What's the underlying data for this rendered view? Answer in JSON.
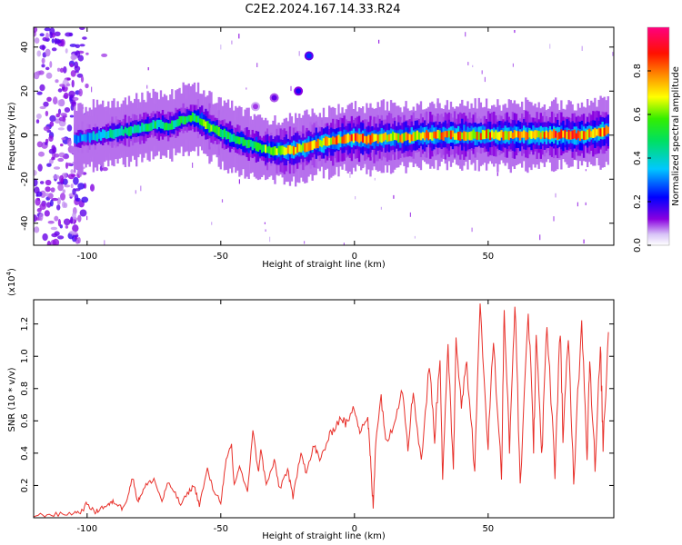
{
  "title": "C2E2.2024.167.14.33.R24",
  "colors": {
    "snr_line": "#e8302a",
    "background": "#ffffff"
  },
  "chart_data": [
    {
      "type": "heatmap",
      "title": "C2E2.2024.167.14.33.R24",
      "xlabel": "Height of straight line (km)",
      "ylabel": "Frequency (Hz)",
      "xlim": [
        -120,
        97
      ],
      "ylim": [
        -50,
        49
      ],
      "x_ticks": [
        -100,
        -50,
        0,
        50
      ],
      "y_ticks": [
        40,
        20,
        0,
        -20,
        -40
      ],
      "colorbar": {
        "label": "Normalized spectral amplitude",
        "range": [
          0.0,
          1.0
        ],
        "ticks": [
          "0.0",
          "0.2",
          "0.4",
          "0.6",
          "0.8"
        ],
        "colormap": [
          "#ffffff",
          "#c49cf5",
          "#7a00d9",
          "#0000ff",
          "#00e0ff",
          "#00ee00",
          "#ffff00",
          "#ff8c00",
          "#ff0000",
          "#ff0080"
        ]
      },
      "ridge": {
        "x": [
          -105,
          -100,
          -95,
          -90,
          -85,
          -80,
          -75,
          -70,
          -65,
          -60,
          -57,
          -55,
          -50,
          -45,
          -40,
          -35,
          -30,
          -25,
          -20,
          -15,
          -10,
          -5,
          0,
          5,
          10,
          15,
          20,
          25,
          30,
          35,
          40,
          45,
          50,
          55,
          60,
          65,
          70,
          75,
          80,
          85,
          90,
          95
        ],
        "freq_hz": [
          -2,
          -1,
          0,
          1,
          2,
          3,
          5,
          4,
          7,
          8,
          6,
          4,
          1,
          -2,
          -4,
          -6,
          -7,
          -7,
          -6,
          -4,
          -3,
          -2,
          -1,
          -2,
          -1,
          -1,
          -1,
          0,
          0,
          0,
          0,
          0,
          0,
          0,
          0,
          0,
          0,
          0,
          0,
          0,
          1,
          2
        ],
        "amplitude": [
          0.3,
          0.35,
          0.4,
          0.45,
          0.45,
          0.5,
          0.5,
          0.5,
          0.5,
          0.55,
          0.6,
          0.6,
          0.55,
          0.5,
          0.55,
          0.6,
          0.7,
          0.75,
          0.75,
          0.75,
          0.8,
          0.8,
          0.85,
          0.8,
          0.75,
          0.75,
          0.75,
          0.8,
          0.8,
          0.8,
          0.8,
          0.8,
          0.8,
          0.8,
          0.85,
          0.85,
          0.8,
          0.85,
          0.85,
          0.85,
          0.85,
          0.85
        ]
      },
      "blobs": [
        {
          "x": -17,
          "freq_hz": 36,
          "amplitude": 0.25
        },
        {
          "x": -21,
          "freq_hz": 20,
          "amplitude": 0.2
        },
        {
          "x": -30,
          "freq_hz": 17,
          "amplitude": 0.15
        },
        {
          "x": -37,
          "freq_hz": 13,
          "amplitude": 0.1
        }
      ]
    },
    {
      "type": "line",
      "xlabel": "Height of straight line (km)",
      "ylabel": "SNR (10 * v/v)",
      "y_multiplier": "(x10",
      "y_multiplier_exp": "4",
      "y_multiplier_close": ")",
      "xlim": [
        -120,
        97
      ],
      "ylim": [
        0,
        1.35
      ],
      "x_ticks": [
        -100,
        -50,
        0,
        50
      ],
      "y_ticks": [
        0.2,
        0.4,
        0.6,
        0.8,
        1.0,
        1.2
      ],
      "y_tick_labels": [
        "0.2",
        "0.4",
        "0.6",
        "0.8",
        "1.0",
        "1.2"
      ],
      "series": [
        {
          "color": "#e8302a",
          "x": [
            -120,
            -115,
            -110,
            -105,
            -102,
            -100,
            -97,
            -95,
            -92,
            -90,
            -87,
            -85,
            -83,
            -81,
            -80,
            -78,
            -75,
            -72,
            -70,
            -68,
            -65,
            -62,
            -60,
            -58,
            -55,
            -53,
            -50,
            -48,
            -46,
            -45,
            -43,
            -40,
            -38,
            -36,
            -35,
            -33,
            -30,
            -28,
            -25,
            -23,
            -20,
            -18,
            -15,
            -13,
            -10,
            -8,
            -5,
            -3,
            0,
            2,
            5,
            6,
            7,
            8,
            10,
            12,
            15,
            18,
            20,
            22,
            25,
            28,
            30,
            32,
            33,
            35,
            37,
            38,
            40,
            42,
            45,
            47,
            50,
            52,
            55,
            56,
            58,
            60,
            62,
            65,
            67,
            68,
            70,
            72,
            75,
            77,
            78,
            80,
            82,
            85,
            87,
            88,
            90,
            92,
            93,
            95
          ],
          "y": [
            0.01,
            0.02,
            0.02,
            0.03,
            0.04,
            0.09,
            0.03,
            0.06,
            0.08,
            0.1,
            0.06,
            0.12,
            0.25,
            0.1,
            0.14,
            0.2,
            0.24,
            0.1,
            0.21,
            0.18,
            0.08,
            0.16,
            0.2,
            0.08,
            0.3,
            0.18,
            0.1,
            0.35,
            0.45,
            0.2,
            0.32,
            0.15,
            0.55,
            0.28,
            0.42,
            0.2,
            0.35,
            0.18,
            0.3,
            0.12,
            0.42,
            0.28,
            0.45,
            0.35,
            0.48,
            0.55,
            0.62,
            0.58,
            0.68,
            0.55,
            0.62,
            0.35,
            0.06,
            0.5,
            0.75,
            0.45,
            0.62,
            0.8,
            0.45,
            0.78,
            0.35,
            0.95,
            0.5,
            1.0,
            0.25,
            1.05,
            0.32,
            1.12,
            0.72,
            0.95,
            0.3,
            1.32,
            0.45,
            1.12,
            0.25,
            1.3,
            0.4,
            1.35,
            0.2,
            1.3,
            0.45,
            1.15,
            0.35,
            1.22,
            0.3,
            1.18,
            0.5,
            1.1,
            0.25,
            1.25,
            0.4,
            1.0,
            0.3,
            1.05,
            0.45,
            1.15
          ]
        }
      ]
    }
  ]
}
